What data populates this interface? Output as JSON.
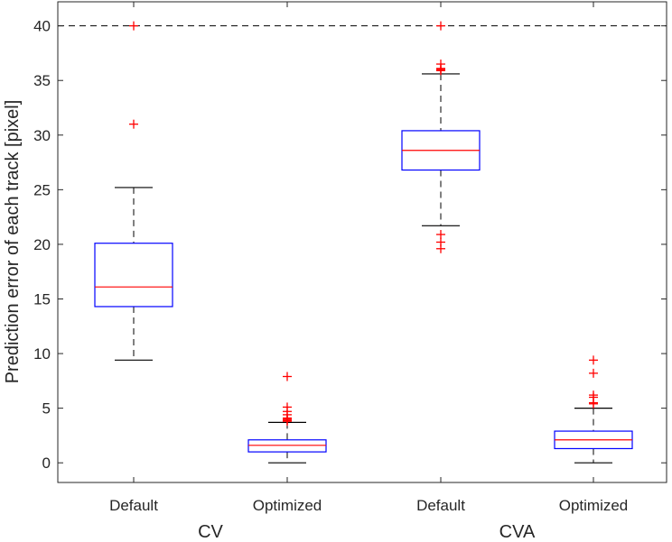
{
  "chart_data": {
    "type": "boxplot",
    "title": "",
    "ylabel": "Prediction error of each track [pixel]",
    "xlabel": "",
    "ylim": [
      -1.8,
      42.2
    ],
    "yticks": [
      0,
      5,
      10,
      15,
      20,
      25,
      30,
      35,
      40
    ],
    "reference_line": {
      "y": 40,
      "style": "dashed"
    },
    "groups": [
      {
        "label": "CV",
        "categories": [
          0,
          1
        ]
      },
      {
        "label": "CVA",
        "categories": [
          2,
          3
        ]
      }
    ],
    "categories": [
      "Default",
      "Optimized",
      "Default",
      "Optimized"
    ],
    "boxes": [
      {
        "q1": 14.3,
        "median": 16.1,
        "q3": 20.1,
        "whisker_low": 9.4,
        "whisker_high": 25.2,
        "outliers": [
          31.0,
          40.0
        ]
      },
      {
        "q1": 1.0,
        "median": 1.6,
        "q3": 2.1,
        "whisker_low": 0.0,
        "whisker_high": 3.7,
        "outliers": [
          3.8,
          3.9,
          4.0,
          4.1,
          4.4,
          4.7,
          5.1,
          7.9
        ]
      },
      {
        "q1": 26.8,
        "median": 28.6,
        "q3": 30.4,
        "whisker_low": 21.7,
        "whisker_high": 35.6,
        "outliers": [
          19.6,
          20.2,
          20.9,
          35.9,
          36.0,
          36.1,
          36.5,
          40.0
        ]
      },
      {
        "q1": 1.3,
        "median": 2.1,
        "q3": 2.9,
        "whisker_low": 0.0,
        "whisker_high": 5.0,
        "outliers": [
          5.4,
          5.5,
          6.0,
          6.2,
          8.2,
          9.4
        ]
      }
    ],
    "colors": {
      "box": "#0000ff",
      "median": "#ff0000",
      "outlier": "#ff0000",
      "whisker": "#000000",
      "axis": "#262626"
    }
  }
}
